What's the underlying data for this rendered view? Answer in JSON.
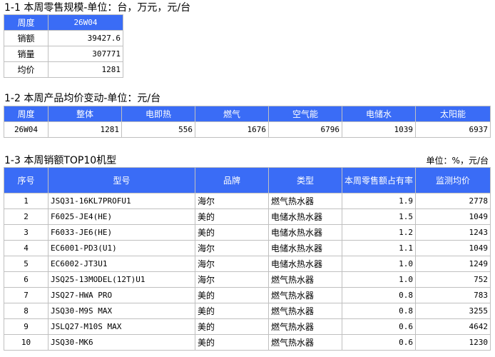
{
  "section1": {
    "title": "1-1 本周零售规模-单位：台，万元，元/台",
    "header": [
      "周度",
      "26W04"
    ],
    "rows": [
      [
        "销额",
        "39427.6"
      ],
      [
        "销量",
        "307771"
      ],
      [
        "均价",
        "1281"
      ]
    ]
  },
  "section2": {
    "title": "1-2 本周产品均价变动-单位：元/台",
    "header": [
      "周度",
      "整体",
      "电即热",
      "燃气",
      "空气能",
      "电储水",
      "太阳能"
    ],
    "row": [
      "26W04",
      "1281",
      "556",
      "1676",
      "6796",
      "1039",
      "6937"
    ]
  },
  "section3": {
    "title": "1-3 本周销额TOP10机型",
    "unit": "单位：%，元/台",
    "header": [
      "序号",
      "型号",
      "品牌",
      "类型",
      "本周零售额占有率",
      "监测均价"
    ],
    "rows": [
      [
        "1",
        "JSQ31-16KL7PROFU1",
        "海尔",
        "燃气热水器",
        "1.9",
        "2778"
      ],
      [
        "2",
        "F6025-JE4(HE)",
        "美的",
        "电储水热水器",
        "1.5",
        "1049"
      ],
      [
        "3",
        "F6033-JE6(HE)",
        "美的",
        "电储水热水器",
        "1.2",
        "1243"
      ],
      [
        "4",
        "EC6001-PD3(U1)",
        "海尔",
        "电储水热水器",
        "1.1",
        "1049"
      ],
      [
        "5",
        "EC6002-JT3U1",
        "海尔",
        "电储水热水器",
        "1.0",
        "1249"
      ],
      [
        "6",
        "JSQ25-13MODEL(12T)U1",
        "海尔",
        "燃气热水器",
        "1.0",
        "752"
      ],
      [
        "7",
        "JSQ27-HWA PRO",
        "美的",
        "燃气热水器",
        "0.8",
        "783"
      ],
      [
        "8",
        "JSQ30-M9S MAX",
        "美的",
        "燃气热水器",
        "0.8",
        "3255"
      ],
      [
        "9",
        "JSLQ27-M10S MAX",
        "美的",
        "燃气热水器",
        "0.6",
        "4642"
      ],
      [
        "10",
        "JSQ30-MK6",
        "美的",
        "燃气热水器",
        "0.6",
        "1230"
      ]
    ]
  },
  "colors": {
    "header_bg": "#3a6cf6",
    "header_text": "#ffffff",
    "border": "#c0c0c0"
  }
}
